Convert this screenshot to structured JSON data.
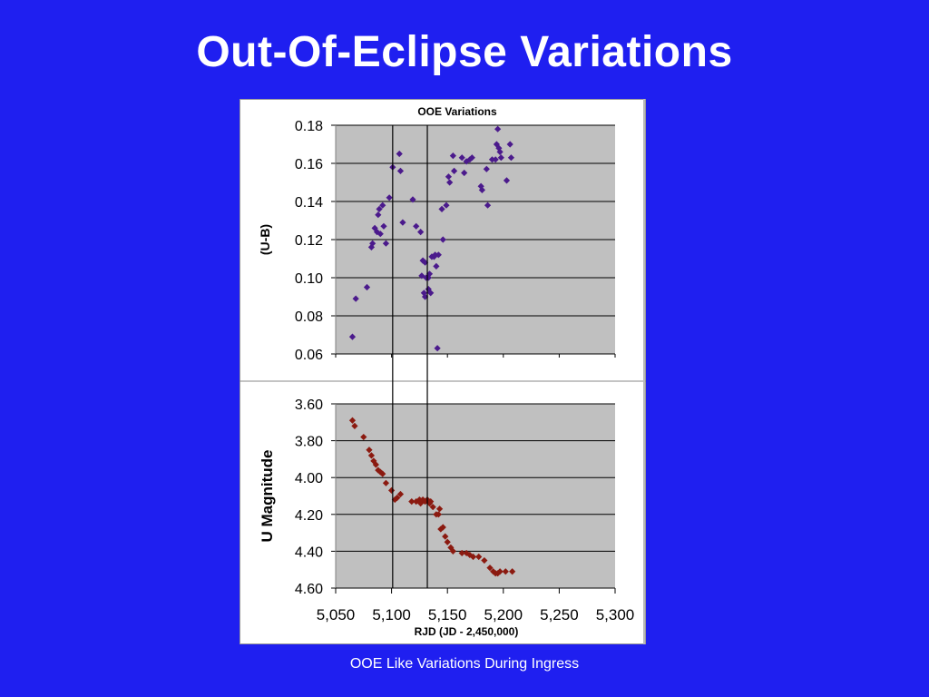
{
  "slide": {
    "title": "Out-Of-Eclipse Variations",
    "caption": "OOE Like Variations During Ingress"
  },
  "colors": {
    "background": "#1f1ff0",
    "plot_area": "#c0c0c0",
    "top_marker": "#4b1a8c",
    "bottom_marker": "#8b1a10"
  },
  "chart_data": [
    {
      "type": "scatter",
      "title": "OOE Variations",
      "ylabel": "(U-B)",
      "xlabel": "",
      "xlim": [
        5050,
        5300
      ],
      "ylim": [
        0.06,
        0.18
      ],
      "y_ticks": [
        "0.06",
        "0.08",
        "0.10",
        "0.12",
        "0.14",
        "0.16",
        "0.18"
      ],
      "y_tick_values": [
        0.06,
        0.08,
        0.1,
        0.12,
        0.14,
        0.16,
        0.18
      ],
      "grid": true,
      "vertical_markers": [
        5101,
        5132
      ],
      "marker": "diamond",
      "series": [
        {
          "points": [
            [
              5065,
              0.069
            ],
            [
              5068,
              0.089
            ],
            [
              5078,
              0.095
            ],
            [
              5082,
              0.116
            ],
            [
              5083,
              0.118
            ],
            [
              5085,
              0.126
            ],
            [
              5087,
              0.124
            ],
            [
              5088,
              0.133
            ],
            [
              5089,
              0.136
            ],
            [
              5090,
              0.123
            ],
            [
              5092,
              0.138
            ],
            [
              5093,
              0.127
            ],
            [
              5095,
              0.118
            ],
            [
              5098,
              0.142
            ],
            [
              5101,
              0.158
            ],
            [
              5107,
              0.165
            ],
            [
              5108,
              0.156
            ],
            [
              5110,
              0.129
            ],
            [
              5119,
              0.141
            ],
            [
              5122,
              0.127
            ],
            [
              5126,
              0.124
            ],
            [
              5127,
              0.101
            ],
            [
              5128,
              0.109
            ],
            [
              5129,
              0.092
            ],
            [
              5130,
              0.108
            ],
            [
              5130,
              0.09
            ],
            [
              5131,
              0.1
            ],
            [
              5133,
              0.094
            ],
            [
              5133,
              0.1
            ],
            [
              5134,
              0.102
            ],
            [
              5135,
              0.092
            ],
            [
              5136,
              0.111
            ],
            [
              5138,
              0.111
            ],
            [
              5139,
              0.112
            ],
            [
              5140,
              0.106
            ],
            [
              5141,
              0.063
            ],
            [
              5142,
              0.112
            ],
            [
              5145,
              0.136
            ],
            [
              5146,
              0.12
            ],
            [
              5149,
              0.138
            ],
            [
              5151,
              0.153
            ],
            [
              5152,
              0.15
            ],
            [
              5155,
              0.164
            ],
            [
              5156,
              0.156
            ],
            [
              5163,
              0.163
            ],
            [
              5165,
              0.155
            ],
            [
              5167,
              0.161
            ],
            [
              5170,
              0.162
            ],
            [
              5172,
              0.163
            ],
            [
              5180,
              0.148
            ],
            [
              5181,
              0.146
            ],
            [
              5185,
              0.157
            ],
            [
              5186,
              0.138
            ],
            [
              5190,
              0.162
            ],
            [
              5193,
              0.162
            ],
            [
              5194,
              0.17
            ],
            [
              5195,
              0.178
            ],
            [
              5196,
              0.168
            ],
            [
              5197,
              0.166
            ],
            [
              5198,
              0.163
            ],
            [
              5203,
              0.151
            ],
            [
              5206,
              0.17
            ],
            [
              5207,
              0.163
            ]
          ]
        }
      ]
    },
    {
      "type": "scatter",
      "title": "",
      "ylabel": "U Magnitude",
      "xlabel": "RJD (JD - 2,450,000)",
      "xlim": [
        5050,
        5300
      ],
      "ylim": [
        3.6,
        4.6
      ],
      "y_inverted": true,
      "x_ticks": [
        "5,050",
        "5,100",
        "5,150",
        "5,200",
        "5,250",
        "5,300"
      ],
      "x_tick_values": [
        5050,
        5100,
        5150,
        5200,
        5250,
        5300
      ],
      "y_ticks": [
        "3.60",
        "3.80",
        "4.00",
        "4.20",
        "4.40",
        "4.60"
      ],
      "y_tick_values": [
        3.6,
        3.8,
        4.0,
        4.2,
        4.4,
        4.6
      ],
      "grid": true,
      "vertical_markers": [
        5101,
        5132
      ],
      "marker": "diamond",
      "series": [
        {
          "points": [
            [
              5065,
              3.69
            ],
            [
              5067,
              3.72
            ],
            [
              5075,
              3.78
            ],
            [
              5080,
              3.85
            ],
            [
              5082,
              3.88
            ],
            [
              5084,
              3.91
            ],
            [
              5086,
              3.93
            ],
            [
              5088,
              3.96
            ],
            [
              5090,
              3.97
            ],
            [
              5092,
              3.98
            ],
            [
              5095,
              4.03
            ],
            [
              5100,
              4.07
            ],
            [
              5103,
              4.12
            ],
            [
              5105,
              4.11
            ],
            [
              5108,
              4.09
            ],
            [
              5118,
              4.13
            ],
            [
              5122,
              4.13
            ],
            [
              5125,
              4.12
            ],
            [
              5126,
              4.14
            ],
            [
              5128,
              4.12
            ],
            [
              5130,
              4.13
            ],
            [
              5132,
              4.12
            ],
            [
              5134,
              4.14
            ],
            [
              5135,
              4.13
            ],
            [
              5137,
              4.16
            ],
            [
              5140,
              4.2
            ],
            [
              5142,
              4.2
            ],
            [
              5143,
              4.17
            ],
            [
              5144,
              4.28
            ],
            [
              5146,
              4.27
            ],
            [
              5148,
              4.32
            ],
            [
              5150,
              4.35
            ],
            [
              5153,
              4.38
            ],
            [
              5155,
              4.4
            ],
            [
              5163,
              4.41
            ],
            [
              5167,
              4.41
            ],
            [
              5170,
              4.42
            ],
            [
              5173,
              4.43
            ],
            [
              5178,
              4.43
            ],
            [
              5183,
              4.45
            ],
            [
              5188,
              4.49
            ],
            [
              5191,
              4.51
            ],
            [
              5193,
              4.52
            ],
            [
              5195,
              4.52
            ],
            [
              5197,
              4.51
            ],
            [
              5202,
              4.51
            ],
            [
              5208,
              4.51
            ]
          ]
        }
      ]
    }
  ]
}
